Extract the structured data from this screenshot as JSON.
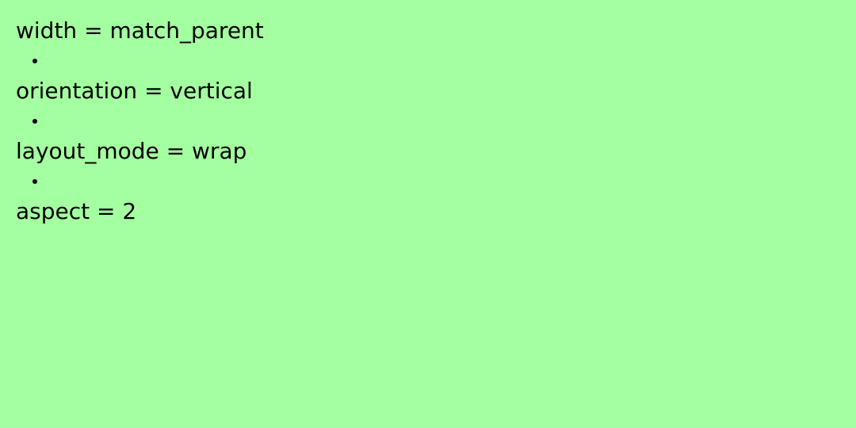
{
  "properties": [
    "width = match_parent",
    "orientation = vertical",
    "layout_mode = wrap",
    "aspect = 2"
  ],
  "colors": {
    "background": "#a4ffa0",
    "text": "#000000"
  }
}
